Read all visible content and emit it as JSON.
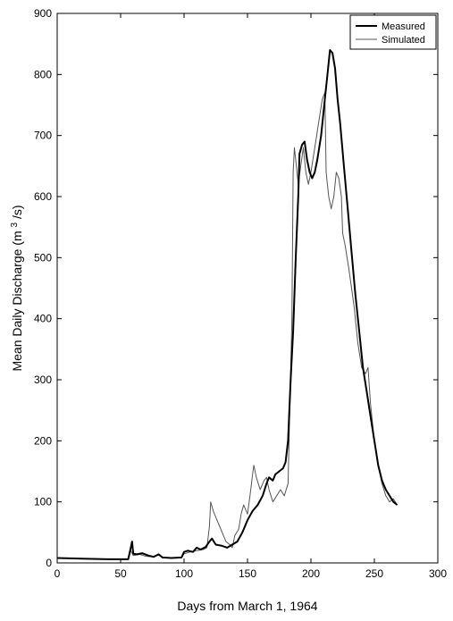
{
  "chart_data": {
    "type": "line",
    "title": "",
    "xlabel": "Days from March 1, 1964",
    "ylabel": "Mean Daily Discharge (m³/s)",
    "ylabel_parts": {
      "prefix": "Mean Daily Discharge (m",
      "exponent": "3",
      "suffix": "/s)"
    },
    "xlim": [
      0,
      300
    ],
    "ylim": [
      0,
      900
    ],
    "xticks": [
      0,
      50,
      100,
      150,
      200,
      250,
      300
    ],
    "yticks": [
      0,
      100,
      200,
      300,
      400,
      500,
      600,
      700,
      800,
      900
    ],
    "grid": false,
    "legend_position": "top-right",
    "series": [
      {
        "name": "Measured",
        "color": "#000000",
        "line_width": 2,
        "points": [
          [
            0,
            8
          ],
          [
            20,
            7
          ],
          [
            40,
            6
          ],
          [
            56,
            6
          ],
          [
            58,
            25
          ],
          [
            59,
            35
          ],
          [
            60,
            15
          ],
          [
            63,
            14
          ],
          [
            67,
            16
          ],
          [
            72,
            12
          ],
          [
            76,
            10
          ],
          [
            80,
            14
          ],
          [
            83,
            9
          ],
          [
            90,
            8
          ],
          [
            98,
            9
          ],
          [
            100,
            18
          ],
          [
            103,
            20
          ],
          [
            107,
            18
          ],
          [
            110,
            25
          ],
          [
            113,
            22
          ],
          [
            117,
            26
          ],
          [
            120,
            35
          ],
          [
            122,
            40
          ],
          [
            125,
            30
          ],
          [
            130,
            28
          ],
          [
            134,
            25
          ],
          [
            138,
            30
          ],
          [
            142,
            35
          ],
          [
            146,
            50
          ],
          [
            150,
            70
          ],
          [
            154,
            85
          ],
          [
            158,
            95
          ],
          [
            162,
            110
          ],
          [
            165,
            130
          ],
          [
            167,
            140
          ],
          [
            170,
            135
          ],
          [
            172,
            145
          ],
          [
            175,
            150
          ],
          [
            178,
            155
          ],
          [
            180,
            165
          ],
          [
            182,
            200
          ],
          [
            184,
            300
          ],
          [
            186,
            380
          ],
          [
            188,
            500
          ],
          [
            190,
            600
          ],
          [
            191,
            670
          ],
          [
            193,
            685
          ],
          [
            195,
            690
          ],
          [
            197,
            660
          ],
          [
            199,
            640
          ],
          [
            201,
            630
          ],
          [
            203,
            640
          ],
          [
            205,
            660
          ],
          [
            208,
            700
          ],
          [
            211,
            760
          ],
          [
            213,
            800
          ],
          [
            215,
            840
          ],
          [
            217,
            835
          ],
          [
            219,
            810
          ],
          [
            221,
            760
          ],
          [
            223,
            720
          ],
          [
            226,
            650
          ],
          [
            229,
            580
          ],
          [
            232,
            510
          ],
          [
            235,
            440
          ],
          [
            238,
            380
          ],
          [
            241,
            320
          ],
          [
            244,
            280
          ],
          [
            247,
            240
          ],
          [
            250,
            200
          ],
          [
            253,
            160
          ],
          [
            256,
            135
          ],
          [
            259,
            120
          ],
          [
            262,
            110
          ],
          [
            265,
            100
          ],
          [
            268,
            95
          ]
        ]
      },
      {
        "name": "Simulated",
        "color": "#555555",
        "line_width": 1,
        "points": [
          [
            0,
            8
          ],
          [
            20,
            7
          ],
          [
            40,
            6
          ],
          [
            56,
            6
          ],
          [
            58,
            20
          ],
          [
            60,
            12
          ],
          [
            65,
            14
          ],
          [
            70,
            11
          ],
          [
            75,
            10
          ],
          [
            80,
            13
          ],
          [
            83,
            8
          ],
          [
            90,
            8
          ],
          [
            98,
            9
          ],
          [
            100,
            15
          ],
          [
            105,
            18
          ],
          [
            110,
            20
          ],
          [
            115,
            22
          ],
          [
            118,
            25
          ],
          [
            120,
            60
          ],
          [
            121,
            100
          ],
          [
            123,
            85
          ],
          [
            125,
            75
          ],
          [
            128,
            60
          ],
          [
            130,
            50
          ],
          [
            133,
            35
          ],
          [
            136,
            30
          ],
          [
            138,
            25
          ],
          [
            140,
            45
          ],
          [
            143,
            55
          ],
          [
            145,
            80
          ],
          [
            147,
            95
          ],
          [
            150,
            80
          ],
          [
            152,
            110
          ],
          [
            154,
            145
          ],
          [
            155,
            160
          ],
          [
            157,
            140
          ],
          [
            160,
            120
          ],
          [
            163,
            135
          ],
          [
            165,
            140
          ],
          [
            167,
            120
          ],
          [
            170,
            100
          ],
          [
            173,
            110
          ],
          [
            176,
            120
          ],
          [
            179,
            110
          ],
          [
            182,
            130
          ],
          [
            185,
            400
          ],
          [
            186,
            640
          ],
          [
            187,
            680
          ],
          [
            188,
            660
          ],
          [
            190,
            620
          ],
          [
            192,
            650
          ],
          [
            194,
            680
          ],
          [
            196,
            640
          ],
          [
            198,
            620
          ],
          [
            200,
            640
          ],
          [
            203,
            680
          ],
          [
            206,
            720
          ],
          [
            209,
            760
          ],
          [
            211,
            770
          ],
          [
            212,
            640
          ],
          [
            214,
            600
          ],
          [
            216,
            580
          ],
          [
            218,
            600
          ],
          [
            220,
            640
          ],
          [
            222,
            630
          ],
          [
            224,
            600
          ],
          [
            225,
            540
          ],
          [
            227,
            520
          ],
          [
            230,
            480
          ],
          [
            234,
            420
          ],
          [
            237,
            360
          ],
          [
            240,
            320
          ],
          [
            243,
            310
          ],
          [
            245,
            320
          ],
          [
            247,
            260
          ],
          [
            250,
            200
          ],
          [
            253,
            160
          ],
          [
            256,
            130
          ],
          [
            259,
            110
          ],
          [
            262,
            100
          ],
          [
            265,
            105
          ],
          [
            268,
            95
          ]
        ]
      }
    ]
  }
}
